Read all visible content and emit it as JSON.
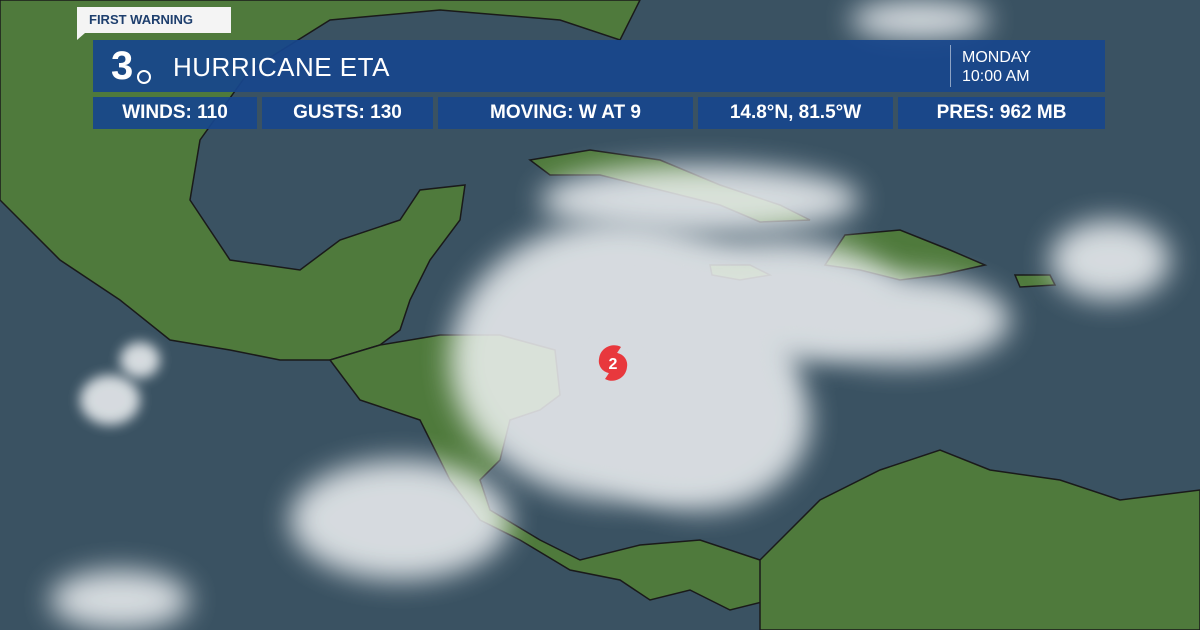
{
  "brand_tag": "FIRST WARNING",
  "logo": {
    "text": "3"
  },
  "header": {
    "title": "HURRICANE ETA",
    "day": "MONDAY",
    "time": "10:00 AM"
  },
  "stats": [
    {
      "text": "WINDS:  110"
    },
    {
      "text": "GUSTS: 130"
    },
    {
      "text": "MOVING: W AT 9"
    },
    {
      "text": "14.8°N, 81.5°W"
    },
    {
      "text": "PRES:  962 MB"
    }
  ],
  "storm_marker": {
    "category": "2",
    "icon": "hurricane-symbol-icon",
    "color": "#e8383d"
  },
  "colors": {
    "bar": "#18468c",
    "ocean": "#3a5262",
    "land": "#4f7a3c"
  }
}
